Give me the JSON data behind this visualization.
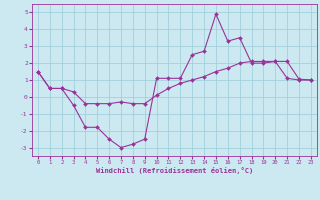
{
  "xlabel": "Windchill (Refroidissement éolien,°C)",
  "xlim": [
    -0.5,
    23.5
  ],
  "ylim": [
    -3.5,
    5.5
  ],
  "yticks": [
    -3,
    -2,
    -1,
    0,
    1,
    2,
    3,
    4,
    5
  ],
  "xticks": [
    0,
    1,
    2,
    3,
    4,
    5,
    6,
    7,
    8,
    9,
    10,
    11,
    12,
    13,
    14,
    15,
    16,
    17,
    18,
    19,
    20,
    21,
    22,
    23
  ],
  "background_color": "#cce8f0",
  "grid_color": "#99ccd8",
  "line_color": "#993399",
  "line1_x": [
    0,
    1,
    2,
    3,
    4,
    5,
    6,
    7,
    8,
    9,
    10,
    11,
    12,
    13,
    14,
    15,
    16,
    17,
    18,
    19,
    20,
    21,
    22,
    23
  ],
  "line1_y": [
    1.5,
    0.5,
    0.5,
    -0.5,
    -1.8,
    -1.8,
    -2.5,
    -3.0,
    -2.8,
    -2.5,
    1.1,
    1.1,
    1.1,
    2.5,
    2.7,
    4.9,
    3.3,
    3.5,
    2.0,
    2.0,
    2.1,
    2.1,
    1.05,
    1.0
  ],
  "line2_x": [
    0,
    1,
    2,
    3,
    4,
    5,
    6,
    7,
    8,
    9,
    10,
    11,
    12,
    13,
    14,
    15,
    16,
    17,
    18,
    19,
    20,
    21,
    22,
    23
  ],
  "line2_y": [
    1.5,
    0.5,
    0.5,
    0.3,
    -0.4,
    -0.4,
    -0.4,
    -0.3,
    -0.4,
    -0.4,
    0.1,
    0.5,
    0.8,
    1.0,
    1.2,
    1.5,
    1.7,
    2.0,
    2.1,
    2.1,
    2.1,
    1.1,
    1.0,
    1.0
  ],
  "marker": "D",
  "markersize": 2.0,
  "linewidth": 0.8
}
